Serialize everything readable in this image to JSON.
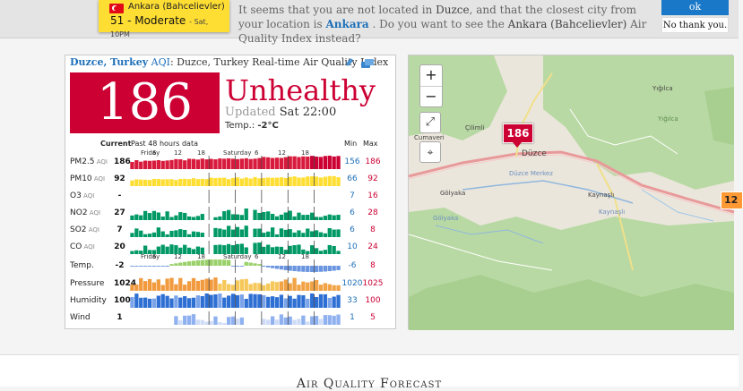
{
  "banner": {
    "alt_city": "Ankara (Bahcelievler)",
    "alt_value": "51 - Moderate",
    "alt_time": "- Sat, 10PM",
    "msg_part1": "It seems that you are not located in ",
    "msg_loc": "Duzce",
    "msg_part2": ", and that the closest city from your location is ",
    "msg_city": "Ankara",
    "msg_part3": " . Do you want to see the ",
    "msg_alt": "Ankara (Bahcelievler)",
    "msg_part4": " Air Quality Index instead?",
    "ok_label": "ok",
    "no_label": "No thank you."
  },
  "card": {
    "city": "Duzce, Turkey",
    "aqi_label": "AQI",
    "title_rest": ": Duzce, Turkey Real-time Air Quality Index",
    "aqi_value": "186",
    "level": "Unhealthy",
    "updated_label": "Updated",
    "updated_time": "Sat 22:00",
    "temp_label": "Temp.:",
    "temp_value": "-2°C",
    "colors": {
      "unhealthy": "#cc0033",
      "good": "#009966",
      "moderate": "#ffde33"
    }
  },
  "table": {
    "current_label": "Current",
    "past_label": "Past 48 hours data",
    "min_label": "Min",
    "max_label": "Max",
    "axis_labels": [
      "Friday",
      "6",
      "12",
      "18",
      "Saturday",
      "6",
      "12",
      "18"
    ],
    "rows": [
      {
        "name": "PM2.5",
        "unit": "AQI",
        "current": "186",
        "min": "156",
        "max": "186",
        "kind": "pm25"
      },
      {
        "name": "PM10",
        "unit": "AQI",
        "current": "92",
        "min": "66",
        "max": "92",
        "kind": "pm10"
      },
      {
        "name": "O3",
        "unit": "AQI",
        "current": "-",
        "min": "7",
        "max": "16",
        "kind": "none"
      },
      {
        "name": "NO2",
        "unit": "AQI",
        "current": "27",
        "min": "6",
        "max": "28",
        "kind": "green"
      },
      {
        "name": "SO2",
        "unit": "AQI",
        "current": "7",
        "min": "6",
        "max": "8",
        "kind": "green"
      },
      {
        "name": "CO",
        "unit": "AQI",
        "current": "20",
        "min": "10",
        "max": "24",
        "kind": "green"
      },
      {
        "name": "Temp.",
        "unit": "",
        "current": "-2",
        "min": "-6",
        "max": "8",
        "kind": "temp"
      },
      {
        "name": "Pressure",
        "unit": "",
        "current": "1024",
        "min": "1020",
        "max": "1025",
        "kind": "pressure"
      },
      {
        "name": "Humidity",
        "unit": "",
        "current": "100",
        "min": "33",
        "max": "100",
        "kind": "humidity"
      },
      {
        "name": "Wind",
        "unit": "",
        "current": "1",
        "min": "1",
        "max": "5",
        "kind": "wind"
      }
    ]
  },
  "map": {
    "zoom_in": "+",
    "zoom_out": "−",
    "fullscreen_icon": "expand-icon",
    "locate_icon": "map-pin-icon",
    "marker_value": "186",
    "marker2_value": "12",
    "labels": {
      "yigilca": "Yığılca",
      "cilimli": "Çilimli",
      "cumaveri": "Cumaveri",
      "duzce": "Düzce",
      "duzce_merkez": "Düzce Merkez",
      "golyaka": "Gölyaka",
      "golyaka2": "Gölyaka",
      "kaynasli": "Kaynaşlı",
      "kaynasli2": "Kaynaşlı",
      "yigilca2": "Yığılca"
    }
  },
  "footer": {
    "forecast_title": "Air Quality Forecast"
  }
}
